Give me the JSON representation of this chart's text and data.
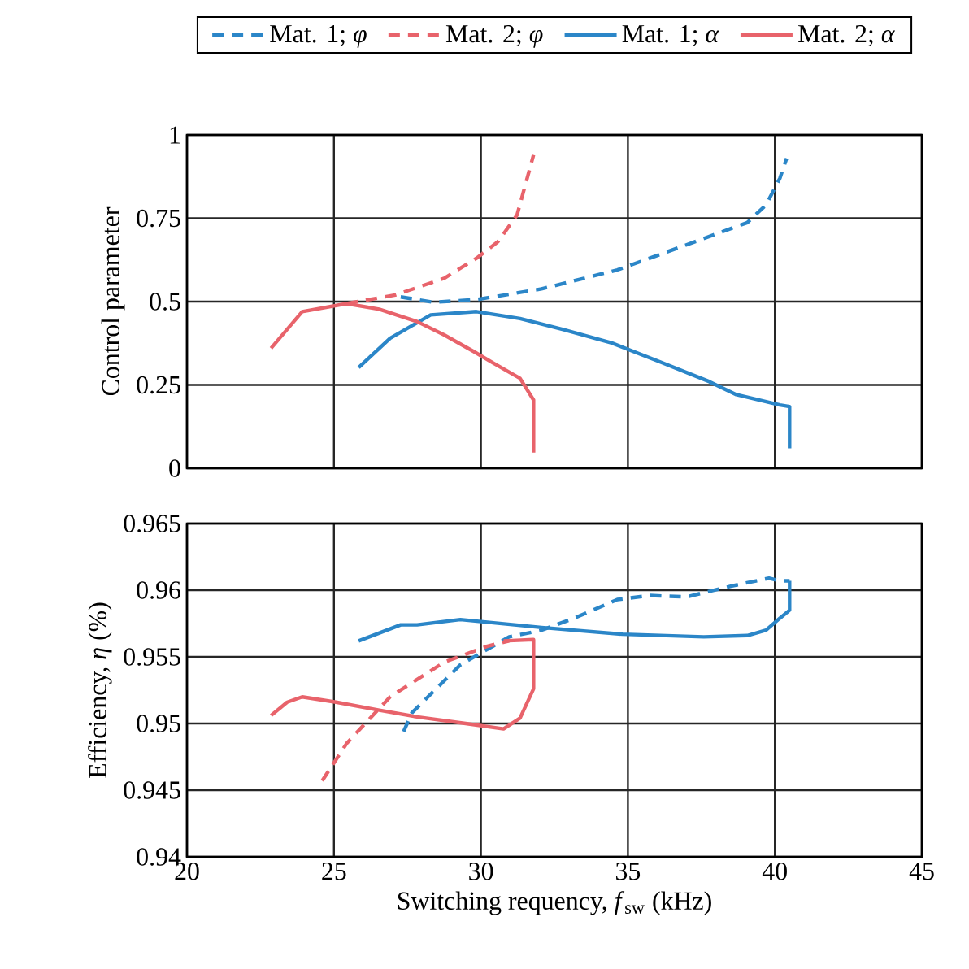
{
  "chart_data": [
    {
      "type": "line",
      "ylabel": "Control parameter",
      "xlim": [
        20,
        45
      ],
      "xticks": [
        20,
        25,
        30,
        35,
        40,
        45
      ],
      "ylim": [
        0,
        1
      ],
      "yticks": [
        0,
        0.25,
        0.5,
        0.75,
        1
      ],
      "grid": true,
      "legend": "top",
      "tick_labels": "y",
      "series": [
        {
          "name": "Mat. 1; *φ*",
          "color": "#2b86c8",
          "line_style": "dashed",
          "x": [
            27.27,
            28.38,
            29.85,
            32.06,
            34.64,
            36.67,
            39.06,
            39.7,
            40.17,
            40.4
          ],
          "values": [
            0.514,
            0.498,
            0.506,
            0.538,
            0.595,
            0.66,
            0.737,
            0.79,
            0.87,
            0.93
          ]
        },
        {
          "name": "Mat. 2; *φ*",
          "color": "#e8636b",
          "line_style": "dashed",
          "x": [
            25.43,
            27.09,
            28.75,
            29.85,
            30.58,
            31.23,
            31.79
          ],
          "values": [
            0.494,
            0.52,
            0.57,
            0.63,
            0.68,
            0.76,
            0.94
          ]
        },
        {
          "name": "Mat. 1; *α*",
          "color": "#2b86c8",
          "line_style": "solid",
          "x": [
            25.84,
            26.91,
            28.29,
            29.85,
            31.33,
            32.8,
            34.45,
            36.1,
            37.77,
            38.69,
            40.17,
            40.5,
            40.5
          ],
          "values": [
            0.302,
            0.39,
            0.46,
            0.47,
            0.449,
            0.416,
            0.376,
            0.319,
            0.26,
            0.221,
            0.19,
            0.185,
            0.06
          ]
        },
        {
          "name": "Mat. 2; *α*",
          "color": "#e8636b",
          "line_style": "solid",
          "x": [
            22.86,
            23.92,
            25.43,
            26.54,
            27.83,
            28.75,
            29.76,
            30.41,
            31.33,
            31.79,
            31.79
          ],
          "values": [
            0.36,
            0.47,
            0.494,
            0.477,
            0.44,
            0.4,
            0.35,
            0.316,
            0.27,
            0.205,
            0.047
          ]
        }
      ]
    },
    {
      "type": "line",
      "xlabel": "Switching requency, *f*$_{sw}$ (kHz)",
      "ylabel": "Efficiency, *η* (%)",
      "xlim": [
        20,
        45
      ],
      "xticks": [
        20,
        25,
        30,
        35,
        40,
        45
      ],
      "ylim": [
        0.94,
        0.965
      ],
      "yticks": [
        0.94,
        0.945,
        0.95,
        0.955,
        0.96,
        0.965
      ],
      "grid": true,
      "series": [
        {
          "color": "#2b86c8",
          "line_style": "dashed",
          "x": [
            27.37,
            27.65,
            28.2,
            29.3,
            30.96,
            32.06,
            33.17,
            34.64,
            35.75,
            37.0,
            38.5,
            39.8,
            40.17,
            40.5
          ],
          "values": [
            0.9494,
            0.9508,
            0.952,
            0.9544,
            0.9565,
            0.957,
            0.9579,
            0.9593,
            0.9596,
            0.9595,
            0.9603,
            0.9609,
            0.9607,
            0.9607
          ]
        },
        {
          "color": "#e8636b",
          "line_style": "dashed",
          "x": [
            24.6,
            25.43,
            26.91,
            28.75,
            30.22,
            30.96
          ],
          "values": [
            0.9457,
            0.9485,
            0.952,
            0.9546,
            0.9558,
            0.9562
          ]
        },
        {
          "color": "#2b86c8",
          "line_style": "solid",
          "x": [
            25.84,
            27.27,
            27.83,
            29.3,
            30.22,
            32.06,
            34.82,
            37.58,
            39.06,
            39.7,
            40.17,
            40.5,
            40.5
          ],
          "values": [
            0.9562,
            0.9574,
            0.9574,
            0.9578,
            0.9576,
            0.9572,
            0.9567,
            0.9565,
            0.9566,
            0.957,
            0.9579,
            0.9585,
            0.9607
          ]
        },
        {
          "color": "#e8636b",
          "line_style": "solid",
          "x": [
            22.86,
            23.41,
            23.92,
            25.07,
            26.54,
            27.83,
            29.48,
            30.77,
            31.33,
            31.79,
            31.79,
            30.77
          ],
          "values": [
            0.9506,
            0.9516,
            0.952,
            0.9516,
            0.951,
            0.9505,
            0.95,
            0.9496,
            0.9504,
            0.9526,
            0.9563,
            0.9562
          ]
        }
      ]
    }
  ]
}
